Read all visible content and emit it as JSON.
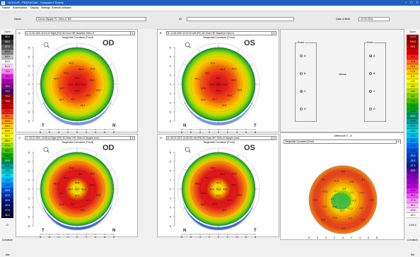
{
  "app": {
    "title": "OCULUS - PENTACAM - Compare 4 Exams"
  },
  "menu": [
    "Patient",
    "Examination",
    "Display",
    "Settings",
    "External software"
  ],
  "patient": {
    "name_label": "Name:",
    "name_value": "Demo Myopie FL Ortho-K MC",
    "id_label": "ID:",
    "id_value": "",
    "dob_label": "Date of Birth:",
    "dob_value": "22.03.2011"
  },
  "left_scale": {
    "header": "Curv",
    "values": [
      "90.0",
      "88.5",
      "87.0",
      "85.5",
      "84.0",
      "82.5",
      "81.0",
      "79.5",
      "78.0",
      "76.5",
      "75.0",
      "73.5",
      "72.0",
      "70.5",
      "69.0",
      "67.5",
      "66.0",
      "64.5",
      "63.0",
      "61.5",
      "60.0",
      "58.5",
      "57.0",
      "55.5",
      "54.0",
      "52.5",
      "51.0",
      "49.5",
      "48.0",
      "46.5",
      "45.0",
      "43.5",
      "42.0",
      "40.5",
      "39.0",
      "37.5",
      "36.0"
    ],
    "colors": [
      "#151515",
      "#3a3a3a",
      "#5c5c5c",
      "#8a8a8a",
      "#bdbdbd",
      "#ffffff",
      "#ffd1ff",
      "#ff7fff",
      "#e020e0",
      "#b000b0",
      "#800080",
      "#400060",
      "#8a0000",
      "#b30000",
      "#d00000",
      "#f02020",
      "#ff6a1a",
      "#ffa000",
      "#ffc800",
      "#ffe600",
      "#fffa00",
      "#d2f000",
      "#90e000",
      "#40c800",
      "#00b000",
      "#009040",
      "#00a0a0",
      "#00c8c8",
      "#00e0ff",
      "#00b0ff",
      "#0080ff",
      "#0050d0",
      "#0030a8",
      "#001a80",
      "#000f60",
      "#000a40",
      "#00052a"
    ],
    "footer": [
      "D",
      "Curvature",
      "Abs"
    ]
  },
  "right_scale": {
    "header": "Curv",
    "values": [
      "+11.9",
      "+10.5",
      "+9.0",
      "+7.5",
      "+6.0",
      "+4.5",
      "+3.0",
      "+1.5",
      "0.0",
      "-1.5",
      "-3.0",
      "-4.5",
      "-6.0",
      "-7.5",
      "-9.0",
      "-10.5",
      "-12.0",
      "-13.5",
      "-15.0",
      "-16.5",
      "-18.0",
      "-19.5",
      "-21.0",
      "-22.5",
      "-24.0",
      "-25.5",
      "-27.0",
      "-28.5",
      "-30.0",
      "-31.5",
      "-33.0",
      "-34.5",
      "-36.0",
      "-37.5",
      "-39.0",
      "-40.5",
      "-42.0"
    ],
    "colors": [
      "#8a0000",
      "#a00000",
      "#c00000",
      "#e00000",
      "#ff2020",
      "#ff6a1a",
      "#ffa000",
      "#ffc800",
      "#ffe600",
      "#fffa00",
      "#e0f000",
      "#b0e000",
      "#80d000",
      "#40c000",
      "#00b000",
      "#00a040",
      "#009070",
      "#00a0a0",
      "#00c0c0",
      "#00d8e0",
      "#00c0ff",
      "#0098ff",
      "#0070ff",
      "#0050e0",
      "#0040c0",
      "#0030a0",
      "#002080",
      "#6000a0",
      "#8000c0",
      "#a000d0",
      "#c000e0",
      "#e020f0",
      "#ff50ff",
      "#ff90ff",
      "#ffc0ff",
      "#ffe0ff",
      "#ffffff"
    ],
    "footer": [
      "0.5/0.0",
      "Curvature",
      "Rel"
    ]
  },
  "maps": [
    {
      "panel_label": "A:",
      "exam": "A: 11.08.2020 11:01:22  Right  (PS) 3D-Scan HR: Baseline Ortho-K",
      "map_title": "Tangential Curvature (Front)",
      "eye": "OD",
      "nasal": "N",
      "temporal": "T",
      "nasal_left": false,
      "center_values": [
        "44.4",
        "43.9",
        "43.3",
        "42.8",
        "44.0"
      ],
      "outer_values": [
        "45.1",
        "44.8",
        "46.2",
        "44.6",
        "45.3",
        "43.9",
        "42.7",
        "44.7",
        "45.1",
        "44.4",
        "43.5",
        "42.8"
      ]
    },
    {
      "panel_label": "B:",
      "exam": "B: 11.08.2020 11:02:03  Left  (PS) 3D-Scan HR: Baseline Ortho-K",
      "map_title": "Tangential Curvature (Front)",
      "eye": "OS",
      "nasal": "N",
      "temporal": "T",
      "nasal_left": true,
      "center_values": [
        "43.7",
        "43.2",
        "43.0",
        "42.6",
        "43.9"
      ],
      "outer_values": [
        "44.6",
        "45.2",
        "44.3",
        "43.8",
        "45.0",
        "44.1",
        "42.8",
        "44.6",
        "43.7",
        "44.9",
        "43.4",
        "42.5"
      ]
    },
    {
      "panel_label": "C:",
      "exam": "C: 26.07.2021 13:08:14  Right  (PS) 3D-Scan HR: Ortho-K Myopie contr...",
      "map_title": "Tangential Curvature (Front)",
      "eye": "OD",
      "nasal": "N",
      "temporal": "T",
      "nasal_left": false,
      "center_values": [
        "39.8",
        "40.5",
        "41.7",
        "40.2",
        "42.2"
      ],
      "outer_values": [
        "44.3",
        "45.6",
        "46.7",
        "44.8",
        "45.9",
        "46.3",
        "44.1",
        "45.8",
        "43.7",
        "45.1",
        "44.9",
        "43.6"
      ]
    },
    {
      "panel_label": "D:",
      "exam": "D: 26.07.2021 13:09:28  Left  (PS) 3D-Scan HR: Ortho-K Myopie contr...",
      "map_title": "Tangential Curvature (Front)",
      "eye": "OS",
      "nasal": "N",
      "temporal": "T",
      "nasal_left": true,
      "center_values": [
        "40.1",
        "40.6",
        "41.4",
        "40.8",
        "42.0"
      ],
      "outer_values": [
        "44.1",
        "45.8",
        "46.4",
        "44.6",
        "45.7",
        "46.0",
        "44.4",
        "45.5",
        "43.9",
        "45.3",
        "44.6",
        "43.8"
      ]
    }
  ],
  "axis_ticks": [
    "8",
    "6",
    "4",
    "2",
    "0",
    "2",
    "4",
    "6",
    "8"
  ],
  "compare": {
    "group1_title": "Exam",
    "group2_title": "Exam",
    "group1_options": [
      "A",
      "B",
      "C",
      "D"
    ],
    "group1_selected": "C",
    "group2_options": [
      "A",
      "B",
      "C",
      "D"
    ],
    "group2_selected": "A",
    "minus_label": "minus"
  },
  "difference": {
    "title": "Difference C - A",
    "select_label": "Tangential Curvature (Front)",
    "values": [
      "-2.8",
      "-3.1",
      "-4.2",
      "-3.9",
      "-2.4",
      "-1.8",
      "-1.2",
      "-0.7",
      "+0.4",
      "+0.8",
      "+1.0",
      "+1.5",
      "+1.2",
      "+0.6",
      "-0.3",
      "-1.6",
      "-2.2",
      "-3.4",
      "-2.7",
      "-1.1",
      "+0.9",
      "+1.7",
      "+1.3",
      "-0.5"
    ]
  }
}
